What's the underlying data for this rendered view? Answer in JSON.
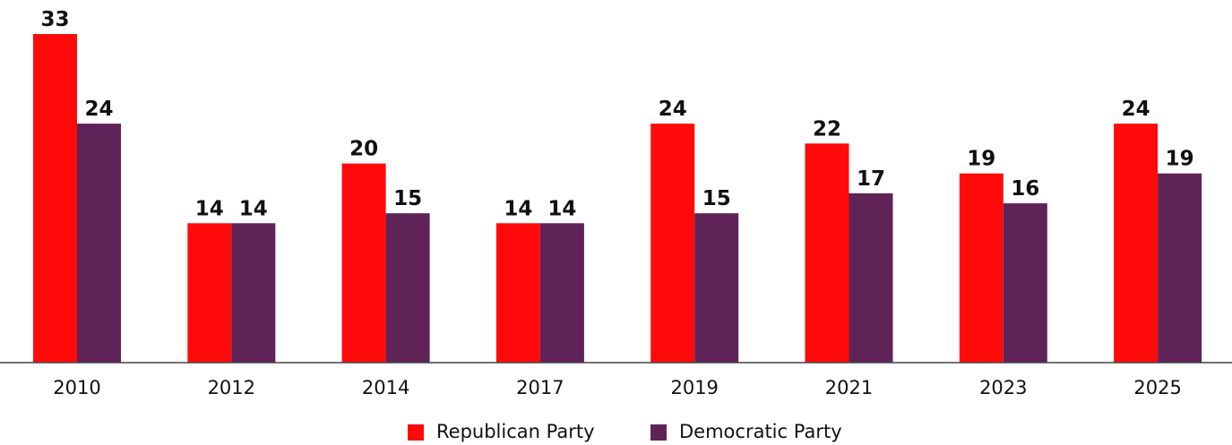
{
  "chart_data": {
    "type": "bar",
    "categories": [
      "2010",
      "2012",
      "2014",
      "2017",
      "2019",
      "2021",
      "2023",
      "2025"
    ],
    "series": [
      {
        "name": "Republican Party",
        "color": "#ff0a0a",
        "values": [
          33,
          14,
          20,
          14,
          24,
          22,
          19,
          24
        ]
      },
      {
        "name": "Democratic Party",
        "color": "#5f2358",
        "values": [
          24,
          14,
          15,
          14,
          15,
          17,
          16,
          19
        ]
      }
    ],
    "ylim": [
      0,
      33
    ],
    "grid": false,
    "legend": "bottom-center",
    "data_labels": true
  }
}
